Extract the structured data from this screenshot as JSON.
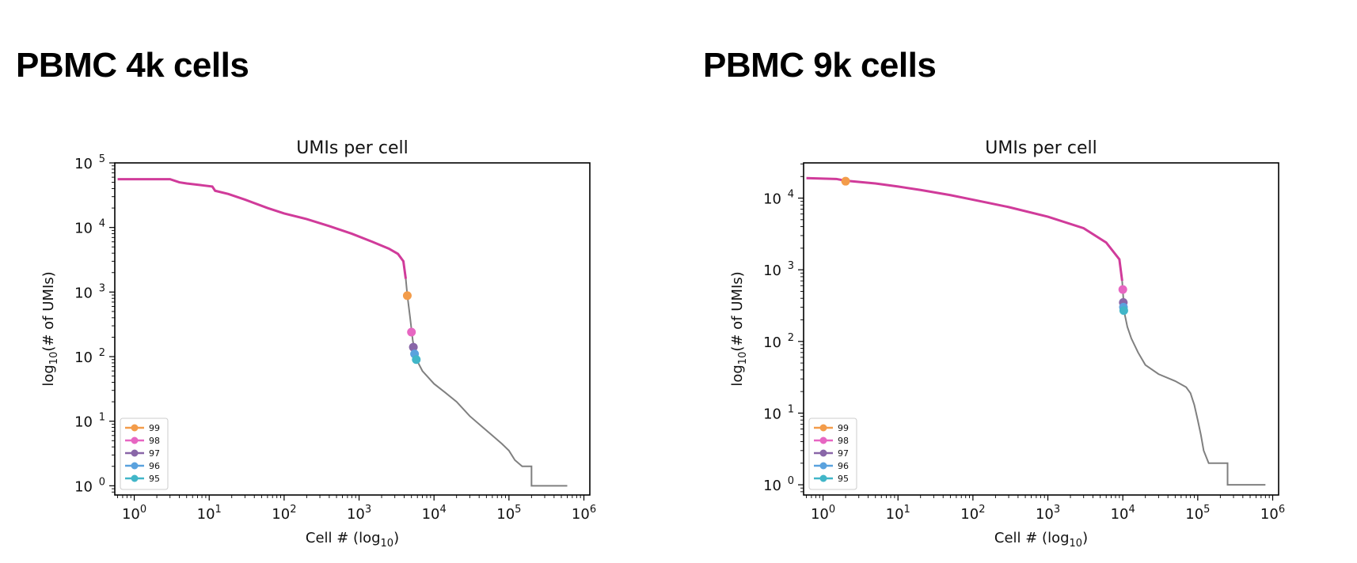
{
  "headings": [
    "PBMC 4k cells",
    "PBMC 9k cells"
  ],
  "chart_data": [
    {
      "type": "line",
      "title": "UMIs per cell",
      "xlabel": "Cell # (log10)",
      "ylabel": "log10(# of UMIs)",
      "xscale": "log",
      "yscale": "log",
      "xlim": [
        0.55,
        1200000
      ],
      "ylim": [
        0.72,
        100000
      ],
      "x_ticks": [
        1,
        10,
        100,
        1000,
        10000,
        100000,
        1000000
      ],
      "x_tick_labels": [
        [
          "10",
          "0"
        ],
        [
          "10",
          "1"
        ],
        [
          "10",
          "2"
        ],
        [
          "10",
          "3"
        ],
        [
          "10",
          "4"
        ],
        [
          "10",
          "5"
        ],
        [
          "10",
          "6"
        ]
      ],
      "y_ticks": [
        1,
        10,
        100,
        1000,
        10000,
        100000
      ],
      "y_tick_labels": [
        [
          "10",
          "0"
        ],
        [
          "10",
          "1"
        ],
        [
          "10",
          "2"
        ],
        [
          "10",
          "3"
        ],
        [
          "10",
          "4"
        ],
        [
          "10",
          "5"
        ]
      ],
      "grid": false,
      "legend_position": "lower-left",
      "cells_cutoff": 4200,
      "cells_color": "#d03b9a",
      "background_color": "#808080",
      "curve": [
        [
          0.6,
          56000
        ],
        [
          3,
          56000
        ],
        [
          4,
          50000
        ],
        [
          5,
          48000
        ],
        [
          8,
          45000
        ],
        [
          11,
          43000
        ],
        [
          12,
          37000
        ],
        [
          18,
          33000
        ],
        [
          30,
          27000
        ],
        [
          60,
          20000
        ],
        [
          100,
          16500
        ],
        [
          200,
          13500
        ],
        [
          400,
          10500
        ],
        [
          800,
          8000
        ],
        [
          1500,
          6000
        ],
        [
          2500,
          4700
        ],
        [
          3300,
          3900
        ],
        [
          3900,
          3000
        ],
        [
          4200,
          1600
        ],
        [
          4400,
          900
        ],
        [
          4800,
          400
        ],
        [
          5200,
          180
        ],
        [
          5700,
          95
        ],
        [
          7000,
          60
        ],
        [
          10000,
          38
        ],
        [
          14000,
          28
        ],
        [
          20000,
          20
        ],
        [
          30000,
          12
        ],
        [
          45000,
          8
        ],
        [
          60000,
          6
        ],
        [
          80000,
          4.5
        ],
        [
          100000,
          3.5
        ],
        [
          120000,
          2.5
        ],
        [
          150000,
          2
        ],
        [
          200000,
          2
        ],
        [
          200000,
          1
        ],
        [
          600000,
          1
        ]
      ],
      "series": [
        {
          "name": "99",
          "color": "#f39c4a",
          "x": 4400,
          "y": 880
        },
        {
          "name": "98",
          "color": "#e766c2",
          "x": 5000,
          "y": 240
        },
        {
          "name": "97",
          "color": "#8966a8",
          "x": 5300,
          "y": 140
        },
        {
          "name": "96",
          "color": "#5aa2de",
          "x": 5500,
          "y": 110
        },
        {
          "name": "95",
          "color": "#41b6c8",
          "x": 5800,
          "y": 90
        }
      ]
    },
    {
      "type": "line",
      "title": "UMIs per cell",
      "xlabel": "Cell # (log10)",
      "ylabel": "log10(# of UMIs)",
      "xscale": "log",
      "yscale": "log",
      "xlim": [
        0.55,
        1200000
      ],
      "ylim": [
        0.72,
        31000
      ],
      "x_ticks": [
        1,
        10,
        100,
        1000,
        10000,
        100000,
        1000000
      ],
      "x_tick_labels": [
        [
          "10",
          "0"
        ],
        [
          "10",
          "1"
        ],
        [
          "10",
          "2"
        ],
        [
          "10",
          "3"
        ],
        [
          "10",
          "4"
        ],
        [
          "10",
          "5"
        ],
        [
          "10",
          "6"
        ]
      ],
      "y_ticks": [
        1,
        10,
        100,
        1000,
        10000
      ],
      "y_tick_labels": [
        [
          "10",
          "0"
        ],
        [
          "10",
          "1"
        ],
        [
          "10",
          "2"
        ],
        [
          "10",
          "3"
        ],
        [
          "10",
          "4"
        ]
      ],
      "grid": false,
      "legend_position": "lower-left",
      "cells_cutoff": 9800,
      "cells_color": "#d03b9a",
      "background_color": "#808080",
      "curve": [
        [
          0.6,
          19000
        ],
        [
          1.5,
          18500
        ],
        [
          2,
          17500
        ],
        [
          5,
          16000
        ],
        [
          10,
          14500
        ],
        [
          20,
          13000
        ],
        [
          50,
          11000
        ],
        [
          100,
          9500
        ],
        [
          300,
          7500
        ],
        [
          1000,
          5500
        ],
        [
          3000,
          3800
        ],
        [
          6000,
          2400
        ],
        [
          9000,
          1400
        ],
        [
          9800,
          700
        ],
        [
          10200,
          380
        ],
        [
          10600,
          240
        ],
        [
          11500,
          160
        ],
        [
          13000,
          110
        ],
        [
          16000,
          70
        ],
        [
          20000,
          47
        ],
        [
          30000,
          35
        ],
        [
          50000,
          28
        ],
        [
          70000,
          23
        ],
        [
          80000,
          19
        ],
        [
          90000,
          13
        ],
        [
          100000,
          8
        ],
        [
          110000,
          5
        ],
        [
          120000,
          3
        ],
        [
          140000,
          2
        ],
        [
          250000,
          2
        ],
        [
          250000,
          1
        ],
        [
          800000,
          1
        ]
      ],
      "series": [
        {
          "name": "99",
          "color": "#f39c4a",
          "x": 2,
          "y": 17200
        },
        {
          "name": "98",
          "color": "#e766c2",
          "x": 10000,
          "y": 530
        },
        {
          "name": "97",
          "color": "#8966a8",
          "x": 10150,
          "y": 350
        },
        {
          "name": "96",
          "color": "#5aa2de",
          "x": 10200,
          "y": 300
        },
        {
          "name": "95",
          "color": "#41b6c8",
          "x": 10300,
          "y": 270
        }
      ]
    }
  ]
}
